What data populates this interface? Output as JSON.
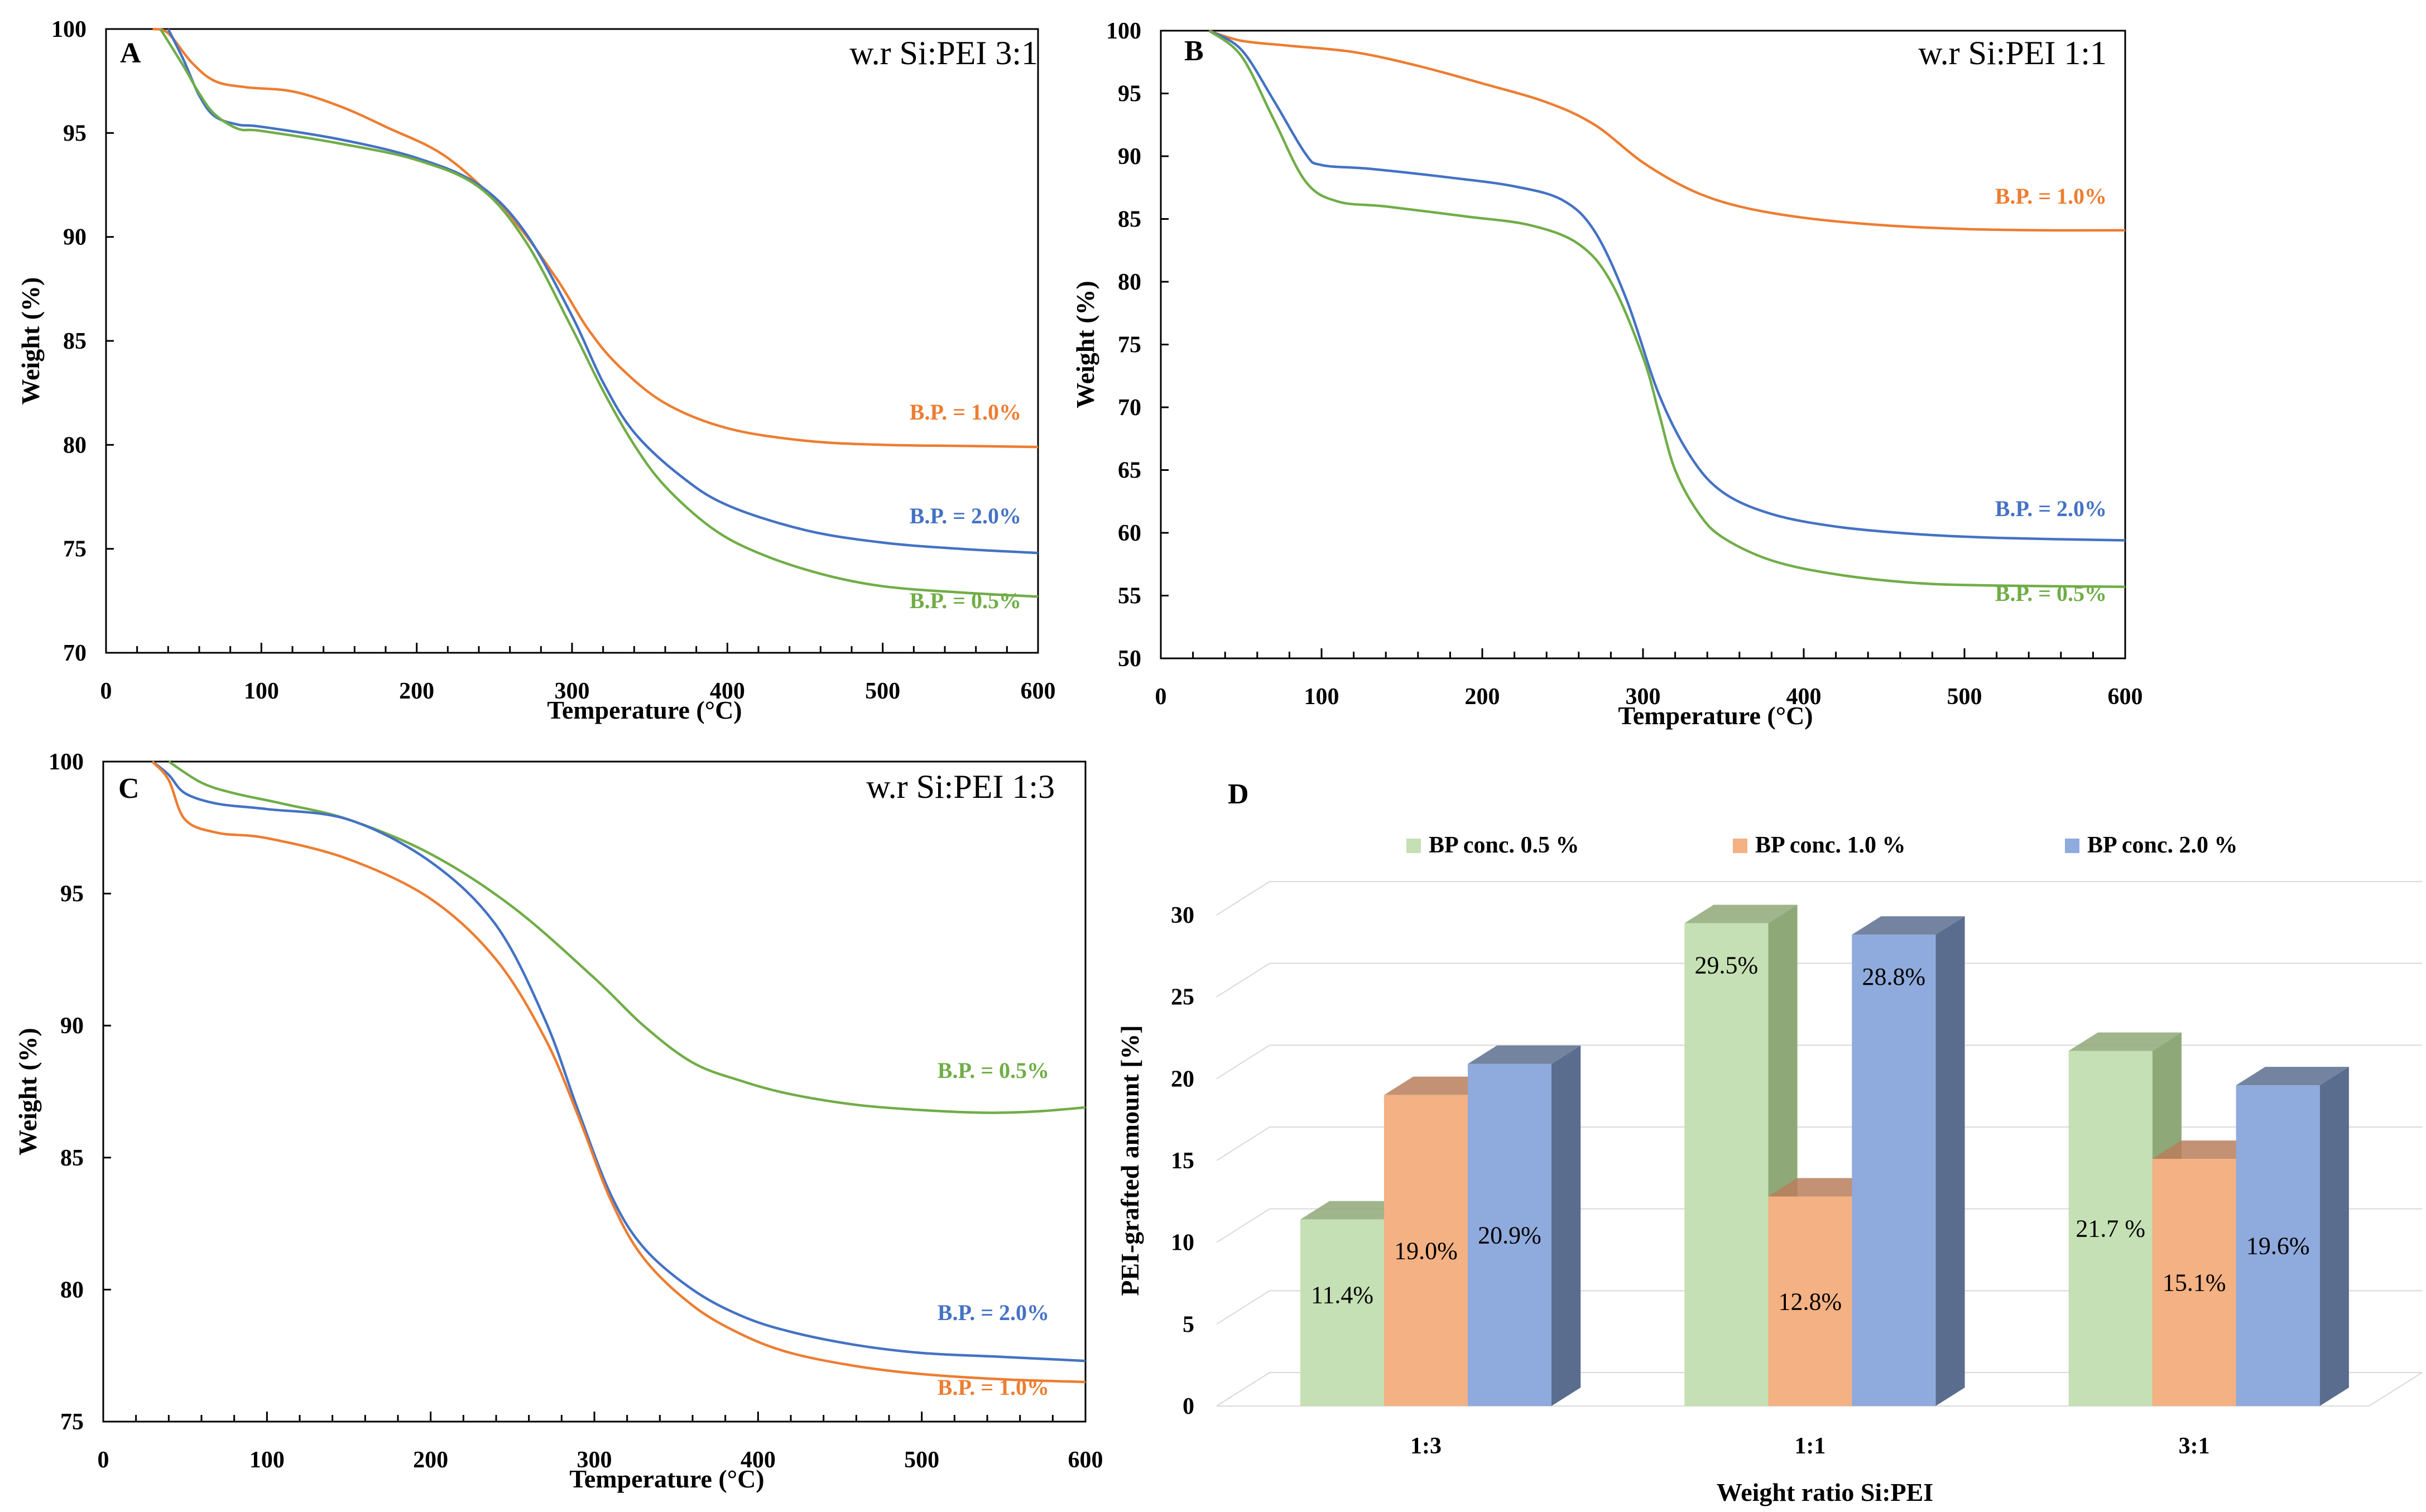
{
  "colors": {
    "green": "#70ad47",
    "orange": "#ed7d31",
    "blue": "#4472c4",
    "bar_green": "#c5e0b4",
    "bar_green_dark": "#8fa878",
    "bar_orange": "#f4b183",
    "bar_orange_dark": "#b87e5a",
    "bar_blue": "#8faadc",
    "bar_blue_dark": "#5b6d8f"
  },
  "chart_data": [
    {
      "id": "A",
      "type": "line",
      "panel_letter": "A",
      "title": "w.r Si:PEI 3:1",
      "xlabel": "Temperature (°C)",
      "ylabel": "Weight (%)",
      "xlim": [
        0,
        600
      ],
      "ylim": [
        70,
        100
      ],
      "xticks": [
        0,
        100,
        200,
        300,
        400,
        500,
        600
      ],
      "yticks": [
        70,
        75,
        80,
        85,
        90,
        95,
        100
      ],
      "xtick_labels": [
        "0",
        "100",
        "200",
        "300",
        "400",
        "500",
        "600"
      ],
      "ytick_labels": [
        "70",
        "75",
        "80",
        "85",
        "90",
        "95",
        "100"
      ],
      "series": [
        {
          "name": "B.P. = 1.0%",
          "label": "B.P. = 1.0%",
          "color_key": "orange",
          "x": [
            30,
            40,
            55,
            70,
            90,
            120,
            150,
            180,
            220,
            260,
            290,
            310,
            330,
            360,
            400,
            450,
            500,
            550,
            600
          ],
          "y": [
            100,
            99.8,
            98.4,
            97.5,
            97.2,
            97.0,
            96.3,
            95.3,
            93.8,
            91.0,
            88.0,
            85.6,
            83.8,
            82.0,
            80.8,
            80.2,
            80.0,
            79.95,
            79.9
          ]
        },
        {
          "name": "B.P. = 2.0%",
          "label": "B.P. = 2.0%",
          "color_key": "blue",
          "x": [
            40,
            50,
            60,
            70,
            85,
            100,
            150,
            200,
            240,
            270,
            300,
            320,
            340,
            370,
            400,
            450,
            500,
            550,
            600
          ],
          "y": [
            100,
            98.5,
            96.8,
            95.8,
            95.4,
            95.3,
            94.7,
            93.8,
            92.5,
            90.2,
            86.2,
            83.0,
            80.6,
            78.5,
            77.1,
            75.9,
            75.3,
            75.0,
            74.8
          ]
        },
        {
          "name": "B.P. = 0.5%",
          "label": "B.P. = 0.5%",
          "color_key": "green",
          "x": [
            35,
            50,
            60,
            70,
            85,
            100,
            150,
            200,
            240,
            270,
            300,
            320,
            340,
            360,
            390,
            420,
            460,
            500,
            550,
            600
          ],
          "y": [
            100,
            98.2,
            96.9,
            95.9,
            95.2,
            95.1,
            94.5,
            93.7,
            92.4,
            89.8,
            85.6,
            82.6,
            80.0,
            78.0,
            76.0,
            74.8,
            73.8,
            73.2,
            72.9,
            72.7
          ]
        }
      ]
    },
    {
      "id": "B",
      "type": "line",
      "panel_letter": "B",
      "title": "w.r Si:PEI 1:1",
      "xlabel": "Temperature (°C)",
      "ylabel": "Weight (%)",
      "xlim": [
        0,
        600
      ],
      "ylim": [
        50,
        100
      ],
      "xticks": [
        0,
        100,
        200,
        300,
        400,
        500,
        600
      ],
      "yticks": [
        50,
        55,
        60,
        65,
        70,
        75,
        80,
        85,
        90,
        95,
        100
      ],
      "xtick_labels": [
        "0",
        "100",
        "200",
        "300",
        "400",
        "500",
        "600"
      ],
      "ytick_labels": [
        "50",
        "55",
        "60",
        "65",
        "70",
        "75",
        "80",
        "85",
        "90",
        "95",
        "100"
      ],
      "series": [
        {
          "name": "B.P. = 1.0%",
          "label": "B.P. = 1.0%",
          "color_key": "orange",
          "x": [
            30,
            50,
            80,
            120,
            160,
            200,
            240,
            270,
            300,
            330,
            360,
            400,
            450,
            500,
            550,
            600
          ],
          "y": [
            100,
            99.2,
            98.8,
            98.3,
            97.2,
            95.8,
            94.3,
            92.5,
            89.5,
            87.3,
            86.0,
            85.1,
            84.5,
            84.2,
            84.1,
            84.1
          ]
        },
        {
          "name": "B.P. = 2.0%",
          "label": "B.P. = 2.0%",
          "color_key": "blue",
          "x": [
            30,
            50,
            70,
            90,
            100,
            130,
            180,
            220,
            250,
            270,
            290,
            310,
            330,
            350,
            380,
            420,
            470,
            520,
            600
          ],
          "y": [
            100,
            98.5,
            94.5,
            90.2,
            89.3,
            89.0,
            88.3,
            87.6,
            86.5,
            84.0,
            78.5,
            71.0,
            66.0,
            63.2,
            61.5,
            60.5,
            59.9,
            59.6,
            59.4
          ]
        },
        {
          "name": "B.P. = 0.5%",
          "label": "B.P. = 0.5%",
          "color_key": "green",
          "x": [
            30,
            50,
            70,
            90,
            110,
            140,
            190,
            230,
            260,
            280,
            300,
            310,
            320,
            335,
            350,
            380,
            420,
            470,
            520,
            600
          ],
          "y": [
            100,
            98.0,
            93.0,
            88.0,
            86.4,
            86.0,
            85.2,
            84.5,
            83.0,
            80.0,
            74.0,
            69.5,
            65.0,
            61.5,
            59.6,
            57.8,
            56.7,
            56.0,
            55.8,
            55.7
          ]
        }
      ]
    },
    {
      "id": "C",
      "type": "line",
      "panel_letter": "C",
      "title": "w.r Si:PEI 1:3",
      "xlabel": "Temperature (°C)",
      "ylabel": "Weight (%)",
      "xlim": [
        0,
        600
      ],
      "ylim": [
        75,
        100
      ],
      "xticks": [
        0,
        100,
        200,
        300,
        400,
        500,
        600
      ],
      "yticks": [
        75,
        80,
        85,
        90,
        95,
        100
      ],
      "xtick_labels": [
        "0",
        "100",
        "200",
        "300",
        "400",
        "500",
        "600"
      ],
      "ytick_labels": [
        "75",
        "80",
        "85",
        "90",
        "95",
        "100"
      ],
      "series": [
        {
          "name": "B.P. = 0.5%",
          "label": "B.P. = 0.5%",
          "color_key": "green",
          "x": [
            40,
            60,
            80,
            110,
            150,
            200,
            250,
            300,
            330,
            360,
            390,
            420,
            460,
            500,
            540,
            570,
            600
          ],
          "y": [
            100,
            99.2,
            98.8,
            98.4,
            97.8,
            96.5,
            94.5,
            91.8,
            90.0,
            88.6,
            87.9,
            87.4,
            87.0,
            86.8,
            86.7,
            86.75,
            86.9
          ]
        },
        {
          "name": "B.P. = 2.0%",
          "label": "B.P. = 2.0%",
          "color_key": "blue",
          "x": [
            30,
            40,
            50,
            70,
            100,
            150,
            200,
            240,
            270,
            290,
            310,
            330,
            360,
            390,
            420,
            460,
            500,
            550,
            600
          ],
          "y": [
            100,
            99.5,
            98.8,
            98.4,
            98.2,
            97.8,
            96.2,
            93.8,
            90.2,
            86.8,
            83.6,
            81.6,
            80.0,
            79.0,
            78.4,
            77.9,
            77.6,
            77.45,
            77.3
          ]
        },
        {
          "name": "B.P. = 1.0%",
          "label": "B.P. = 1.0%",
          "color_key": "orange",
          "x": [
            30,
            40,
            50,
            70,
            100,
            150,
            200,
            240,
            270,
            290,
            310,
            330,
            360,
            390,
            420,
            460,
            500,
            550,
            600
          ],
          "y": [
            100,
            99.3,
            97.8,
            97.3,
            97.1,
            96.3,
            94.8,
            92.5,
            89.5,
            86.6,
            83.4,
            81.2,
            79.4,
            78.3,
            77.6,
            77.1,
            76.8,
            76.6,
            76.5
          ]
        }
      ]
    },
    {
      "id": "D",
      "type": "bar",
      "panel_letter": "D",
      "title": "",
      "xlabel": "Weight ratio Si:PEI",
      "ylabel": "PEI-grafted amount [%]",
      "categories": [
        "1:3",
        "1:1",
        "3:1"
      ],
      "ylim": [
        0,
        30
      ],
      "yticks": [
        0,
        5,
        10,
        15,
        20,
        25,
        30
      ],
      "ytick_labels": [
        "0",
        "5",
        "10",
        "15",
        "20",
        "25",
        "30"
      ],
      "legend_position": "top",
      "series": [
        {
          "name": "BP conc. 0.5 %",
          "color_key": "bar_green",
          "values": [
            11.4,
            29.5,
            21.7
          ],
          "value_labels": [
            "11.4%",
            "29.5%",
            "21.7 %"
          ]
        },
        {
          "name": "BP conc. 1.0 %",
          "color_key": "bar_orange",
          "values": [
            19.0,
            12.8,
            15.1
          ],
          "value_labels": [
            "19.0%",
            "12.8%",
            "15.1%"
          ]
        },
        {
          "name": "BP conc. 2.0 %",
          "color_key": "bar_blue",
          "values": [
            20.9,
            28.8,
            19.6
          ],
          "value_labels": [
            "20.9%",
            "28.8%",
            "19.6%"
          ]
        }
      ]
    }
  ]
}
